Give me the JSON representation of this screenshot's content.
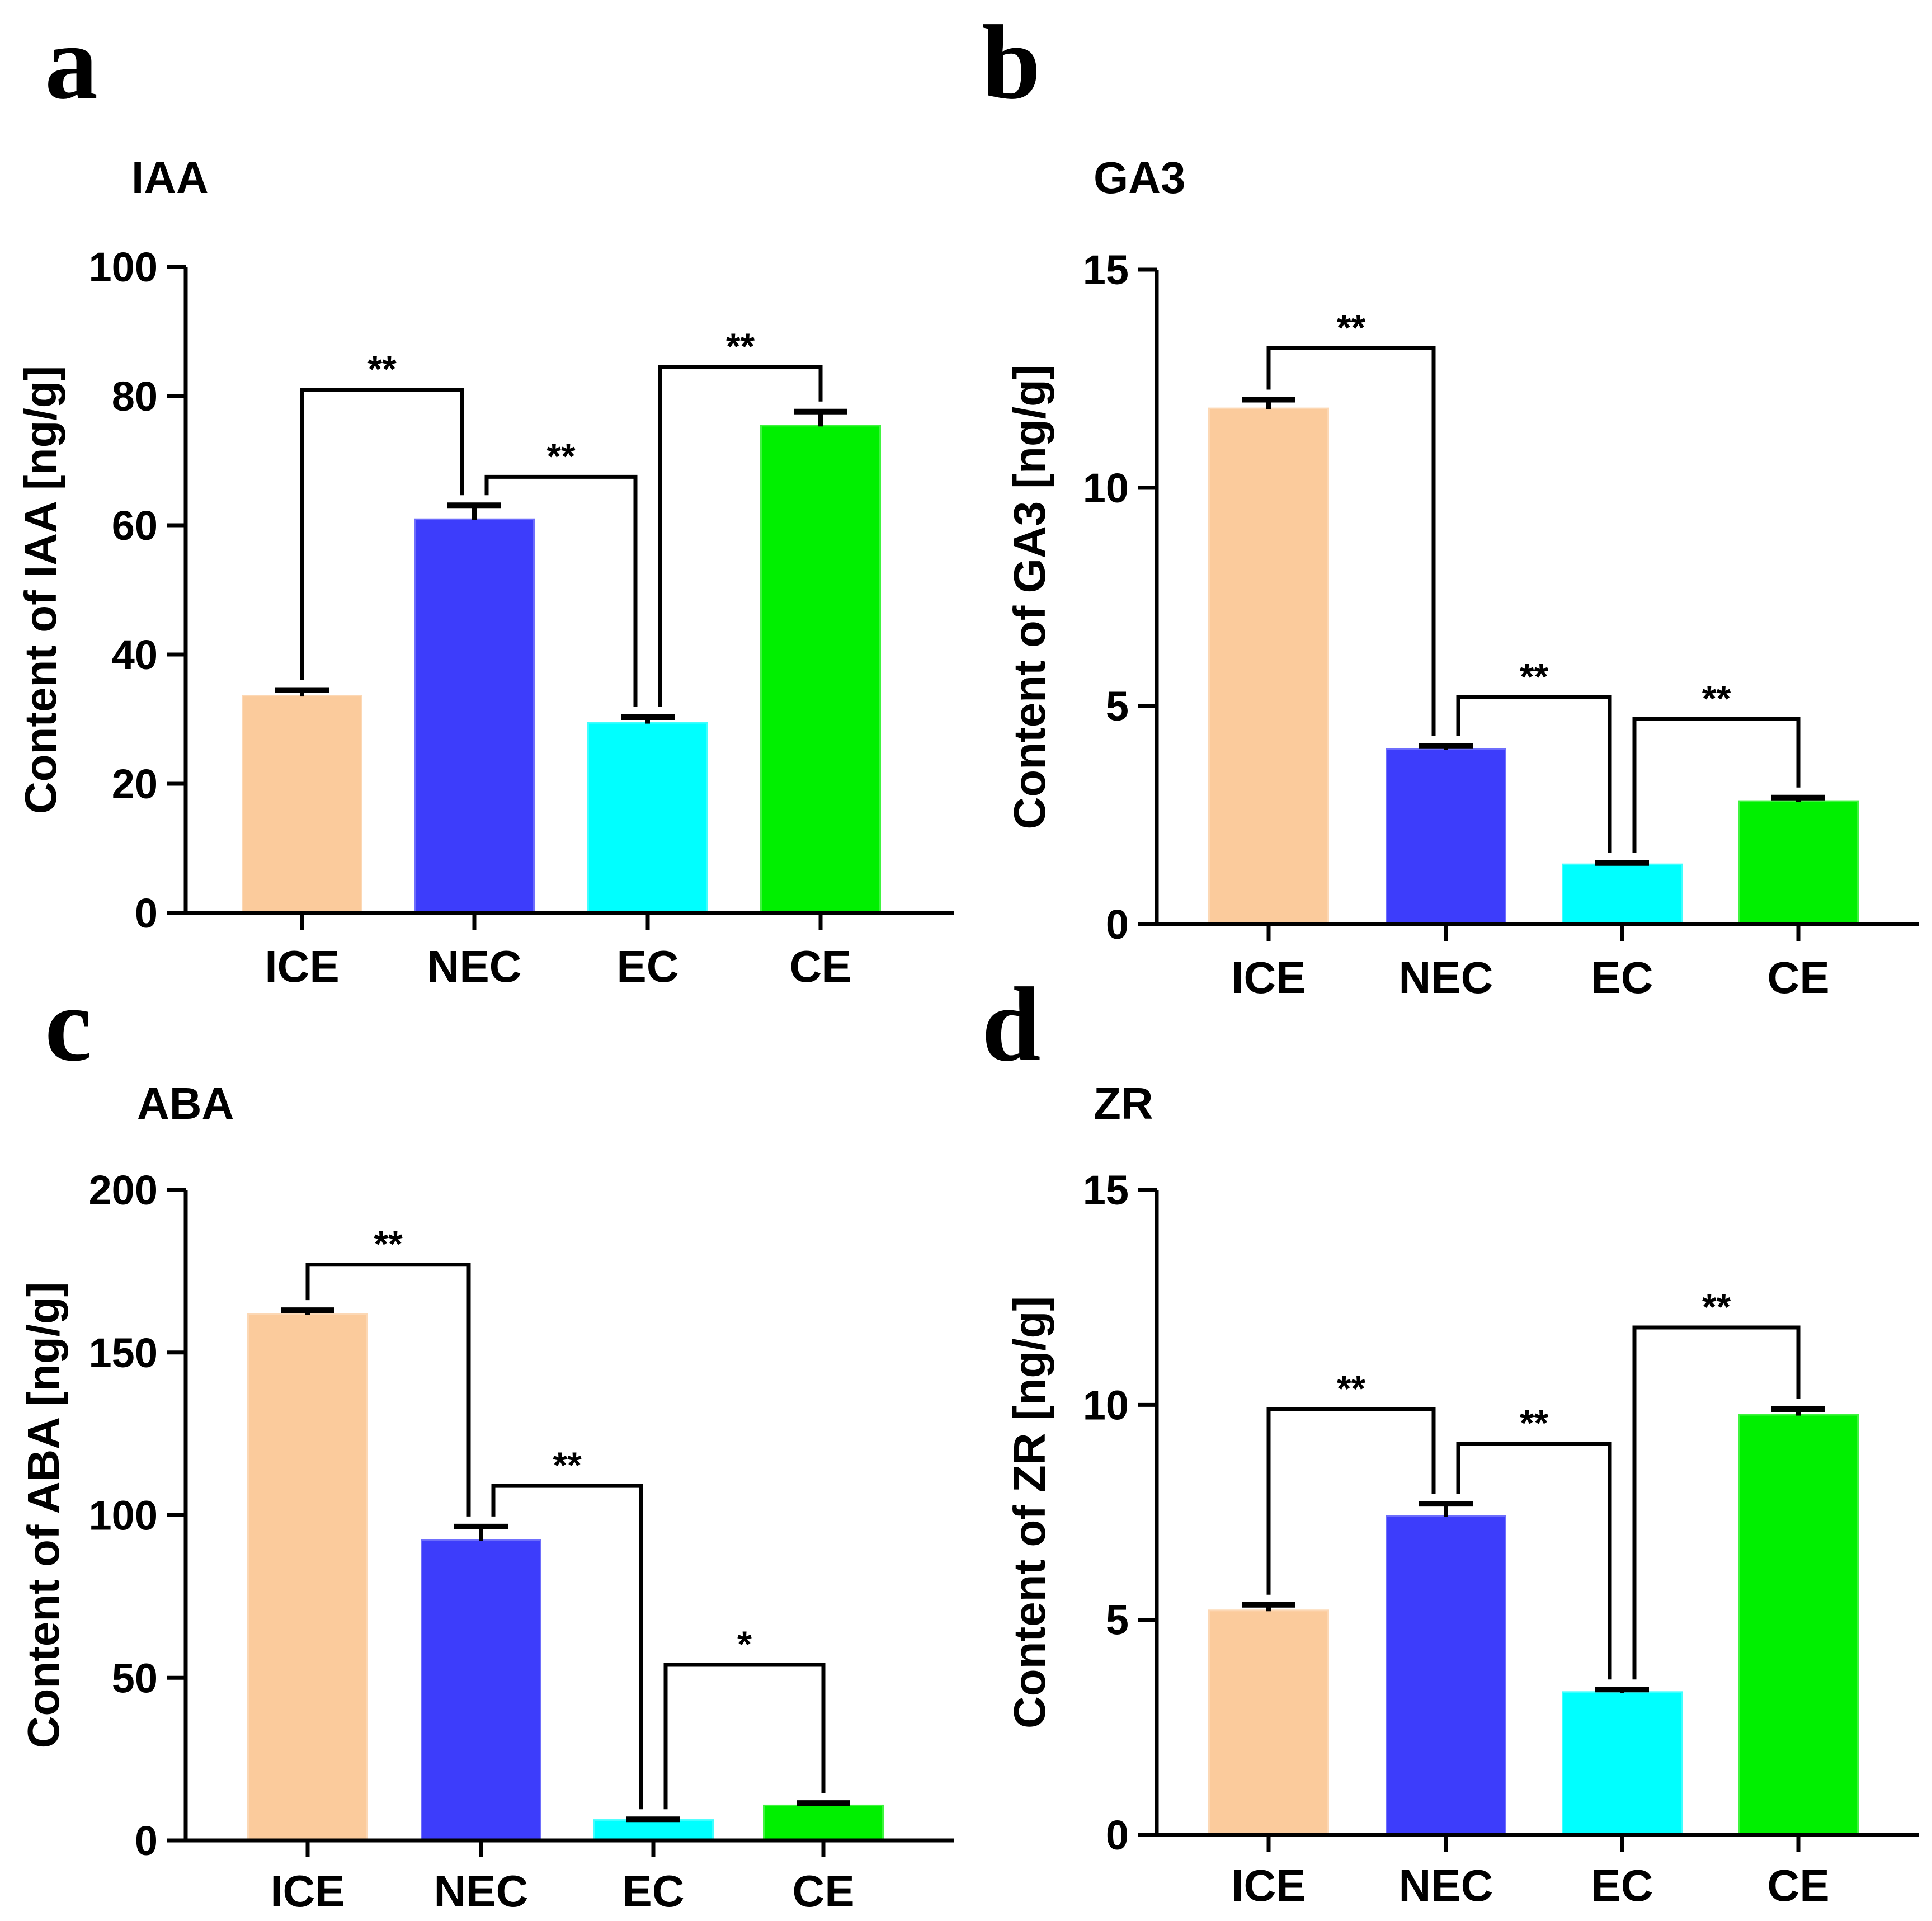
{
  "figure": {
    "panels": [
      {
        "letter": "a"
      },
      {
        "letter": "b"
      },
      {
        "letter": "c"
      },
      {
        "letter": "d"
      }
    ]
  },
  "chart_data": [
    {
      "type": "bar",
      "panel": "a",
      "title": "IAA",
      "ylabel": "Content of  IAA [ng/g]",
      "xlabel": "",
      "categories": [
        "ICE",
        "NEC",
        "EC",
        "CE"
      ],
      "values": [
        33.5,
        60.8,
        29.3,
        75.3
      ],
      "errors": [
        1.0,
        2.3,
        1.0,
        2.3
      ],
      "colors": [
        "#FBCB9C",
        "#3D3DFB",
        "#00FFFF",
        "#00F000"
      ],
      "ylim": [
        0,
        100
      ],
      "yticks": [
        0,
        20,
        40,
        60,
        80,
        100
      ],
      "significance": [
        {
          "from": 0,
          "to": 1,
          "level": 81,
          "label": "**"
        },
        {
          "from": 1,
          "to": 2,
          "level": 67.5,
          "label": "**"
        },
        {
          "from": 2,
          "to": 3,
          "level": 84.5,
          "label": "**"
        }
      ]
    },
    {
      "type": "bar",
      "panel": "b",
      "title": "GA3",
      "ylabel": "Content of  GA3 [ng/g]",
      "xlabel": "",
      "categories": [
        "ICE",
        "NEC",
        "EC",
        "CE"
      ],
      "values": [
        11.8,
        4.0,
        1.35,
        2.8
      ],
      "errors": [
        0.22,
        0.08,
        0.05,
        0.1
      ],
      "colors": [
        "#FBCB9C",
        "#3D3DFB",
        "#00FFFF",
        "#00F000"
      ],
      "ylim": [
        0,
        15
      ],
      "yticks": [
        0,
        5,
        10,
        15
      ],
      "significance": [
        {
          "from": 0,
          "to": 1,
          "level": 13.2,
          "label": "**"
        },
        {
          "from": 1,
          "to": 2,
          "level": 5.2,
          "label": "**"
        },
        {
          "from": 2,
          "to": 3,
          "level": 4.7,
          "label": "**"
        }
      ]
    },
    {
      "type": "bar",
      "panel": "c",
      "title": "ABA",
      "ylabel": "Content of  ABA [ng/g]",
      "xlabel": "",
      "categories": [
        "ICE",
        "NEC",
        "EC",
        "CE"
      ],
      "values": [
        161.5,
        92,
        6,
        10.5
      ],
      "errors": [
        1.5,
        4.5,
        0.5,
        1.0
      ],
      "colors": [
        "#FBCB9C",
        "#3D3DFB",
        "#00FFFF",
        "#00F000"
      ],
      "ylim": [
        0,
        200
      ],
      "yticks": [
        0,
        50,
        100,
        150,
        200
      ],
      "significance": [
        {
          "from": 0,
          "to": 1,
          "level": 177,
          "label": "**"
        },
        {
          "from": 1,
          "to": 2,
          "level": 109,
          "label": "**"
        },
        {
          "from": 2,
          "to": 3,
          "level": 54,
          "label": "*"
        }
      ]
    },
    {
      "type": "bar",
      "panel": "d",
      "title": "ZR",
      "ylabel": "Content of  ZR [ng/g]",
      "xlabel": "",
      "categories": [
        "ICE",
        "NEC",
        "EC",
        "CE"
      ],
      "values": [
        5.2,
        7.4,
        3.3,
        9.75
      ],
      "errors": [
        0.15,
        0.3,
        0.08,
        0.15
      ],
      "colors": [
        "#FBCB9C",
        "#3D3DFB",
        "#00FFFF",
        "#00F000"
      ],
      "ylim": [
        0,
        15
      ],
      "yticks": [
        0,
        5,
        10,
        15
      ],
      "significance": [
        {
          "from": 0,
          "to": 1,
          "level": 9.9,
          "label": "**"
        },
        {
          "from": 1,
          "to": 2,
          "level": 9.1,
          "label": "**"
        },
        {
          "from": 2,
          "to": 3,
          "level": 11.8,
          "label": "**"
        }
      ]
    }
  ]
}
